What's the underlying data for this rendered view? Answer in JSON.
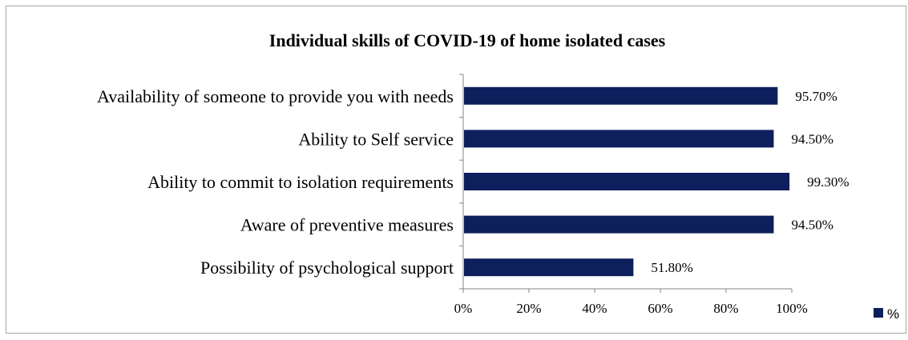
{
  "chart_data": {
    "type": "bar",
    "orientation": "horizontal",
    "title": "Individual skills of COVID-19 of home isolated cases",
    "categories": [
      "Availability of someone to provide you with needs",
      "Ability to Self service",
      "Ability to commit to isolation requirements",
      "Aware of preventive measures",
      "Possibility of psychological support"
    ],
    "series": [
      {
        "name": "%",
        "values": [
          95.7,
          94.5,
          99.3,
          94.5,
          51.8
        ],
        "data_labels": [
          "95.70%",
          "94.50%",
          "99.30%",
          "94.50%",
          "51.80%"
        ]
      }
    ],
    "xlim": [
      0,
      100
    ],
    "x_ticks": [
      "0%",
      "20%",
      "40%",
      "60%",
      "80%",
      "100%"
    ],
    "xlabel": "",
    "ylabel": "",
    "grid": false,
    "legend_position": "bottom-right",
    "bar_color": "#0d1f5c"
  }
}
